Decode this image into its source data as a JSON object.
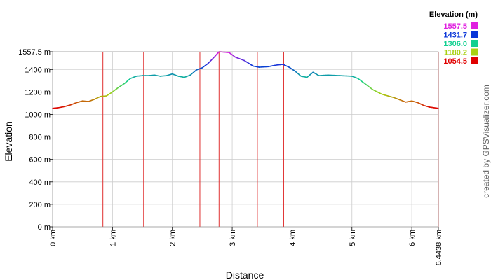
{
  "chart_data": {
    "type": "line",
    "xlabel": "Distance",
    "ylabel": "Elevation",
    "x_unit": "km",
    "xlim": [
      0,
      6.4438
    ],
    "ylim": [
      0,
      1557.5
    ],
    "x_ticks": [
      {
        "value": 0,
        "label": "0 km"
      },
      {
        "value": 1,
        "label": "1 km"
      },
      {
        "value": 2,
        "label": "2 km"
      },
      {
        "value": 3,
        "label": "3 km"
      },
      {
        "value": 4,
        "label": "4 km"
      },
      {
        "value": 5,
        "label": "5 km"
      },
      {
        "value": 6,
        "label": "6 km"
      },
      {
        "value": 6.4438,
        "label": "6.4438 km"
      }
    ],
    "y_ticks": [
      {
        "value": 0,
        "label": "0 m"
      },
      {
        "value": 200,
        "label": "200 m"
      },
      {
        "value": 400,
        "label": "400 m"
      },
      {
        "value": 600,
        "label": "600 m"
      },
      {
        "value": 800,
        "label": "800 m"
      },
      {
        "value": 1000,
        "label": "1000 m"
      },
      {
        "value": 1200,
        "label": "1200 m"
      },
      {
        "value": 1400,
        "label": "1400 m"
      },
      {
        "value": 1557.5,
        "label": "1557.5 m"
      }
    ],
    "grid": true,
    "waypoint_markers_x": [
      0.84,
      1.52,
      2.46,
      2.78,
      3.42,
      3.86
    ],
    "series": [
      {
        "x": [
          0,
          0.1,
          0.2,
          0.3,
          0.4,
          0.5,
          0.6,
          0.7,
          0.8,
          0.9,
          1.0,
          1.1,
          1.2,
          1.3,
          1.4,
          1.5,
          1.6,
          1.7,
          1.8,
          1.9,
          2.0,
          2.1,
          2.2,
          2.3,
          2.4,
          2.5,
          2.6,
          2.7,
          2.78,
          2.85,
          2.95,
          3.05,
          3.2,
          3.35,
          3.45,
          3.6,
          3.75,
          3.85,
          3.95,
          4.05,
          4.15,
          4.25,
          4.35,
          4.45,
          4.6,
          4.8,
          5.0,
          5.1,
          5.2,
          5.35,
          5.5,
          5.7,
          5.9,
          6.0,
          6.1,
          6.2,
          6.3,
          6.4438
        ],
        "y": [
          1054.5,
          1060,
          1070,
          1085,
          1105,
          1120,
          1115,
          1135,
          1160,
          1165,
          1200,
          1240,
          1275,
          1320,
          1340,
          1345,
          1345,
          1350,
          1340,
          1345,
          1360,
          1340,
          1330,
          1350,
          1395,
          1415,
          1455,
          1510,
          1557.5,
          1555,
          1550,
          1510,
          1480,
          1430,
          1420,
          1425,
          1440,
          1445,
          1420,
          1385,
          1340,
          1330,
          1375,
          1345,
          1350,
          1345,
          1340,
          1320,
          1280,
          1220,
          1180,
          1150,
          1110,
          1120,
          1105,
          1080,
          1065,
          1054.5
        ]
      }
    ]
  },
  "legend": {
    "title": "Elevation (m)",
    "entries": [
      {
        "label": "1557.5",
        "color": "#e020e0"
      },
      {
        "label": "1431.7",
        "color": "#0a36d8"
      },
      {
        "label": "1306.0",
        "color": "#10d090"
      },
      {
        "label": "1180.2",
        "color": "#a8d010"
      },
      {
        "label": "1054.5",
        "color": "#e00000"
      }
    ]
  },
  "credit": "created by GPSVisualizer.com"
}
